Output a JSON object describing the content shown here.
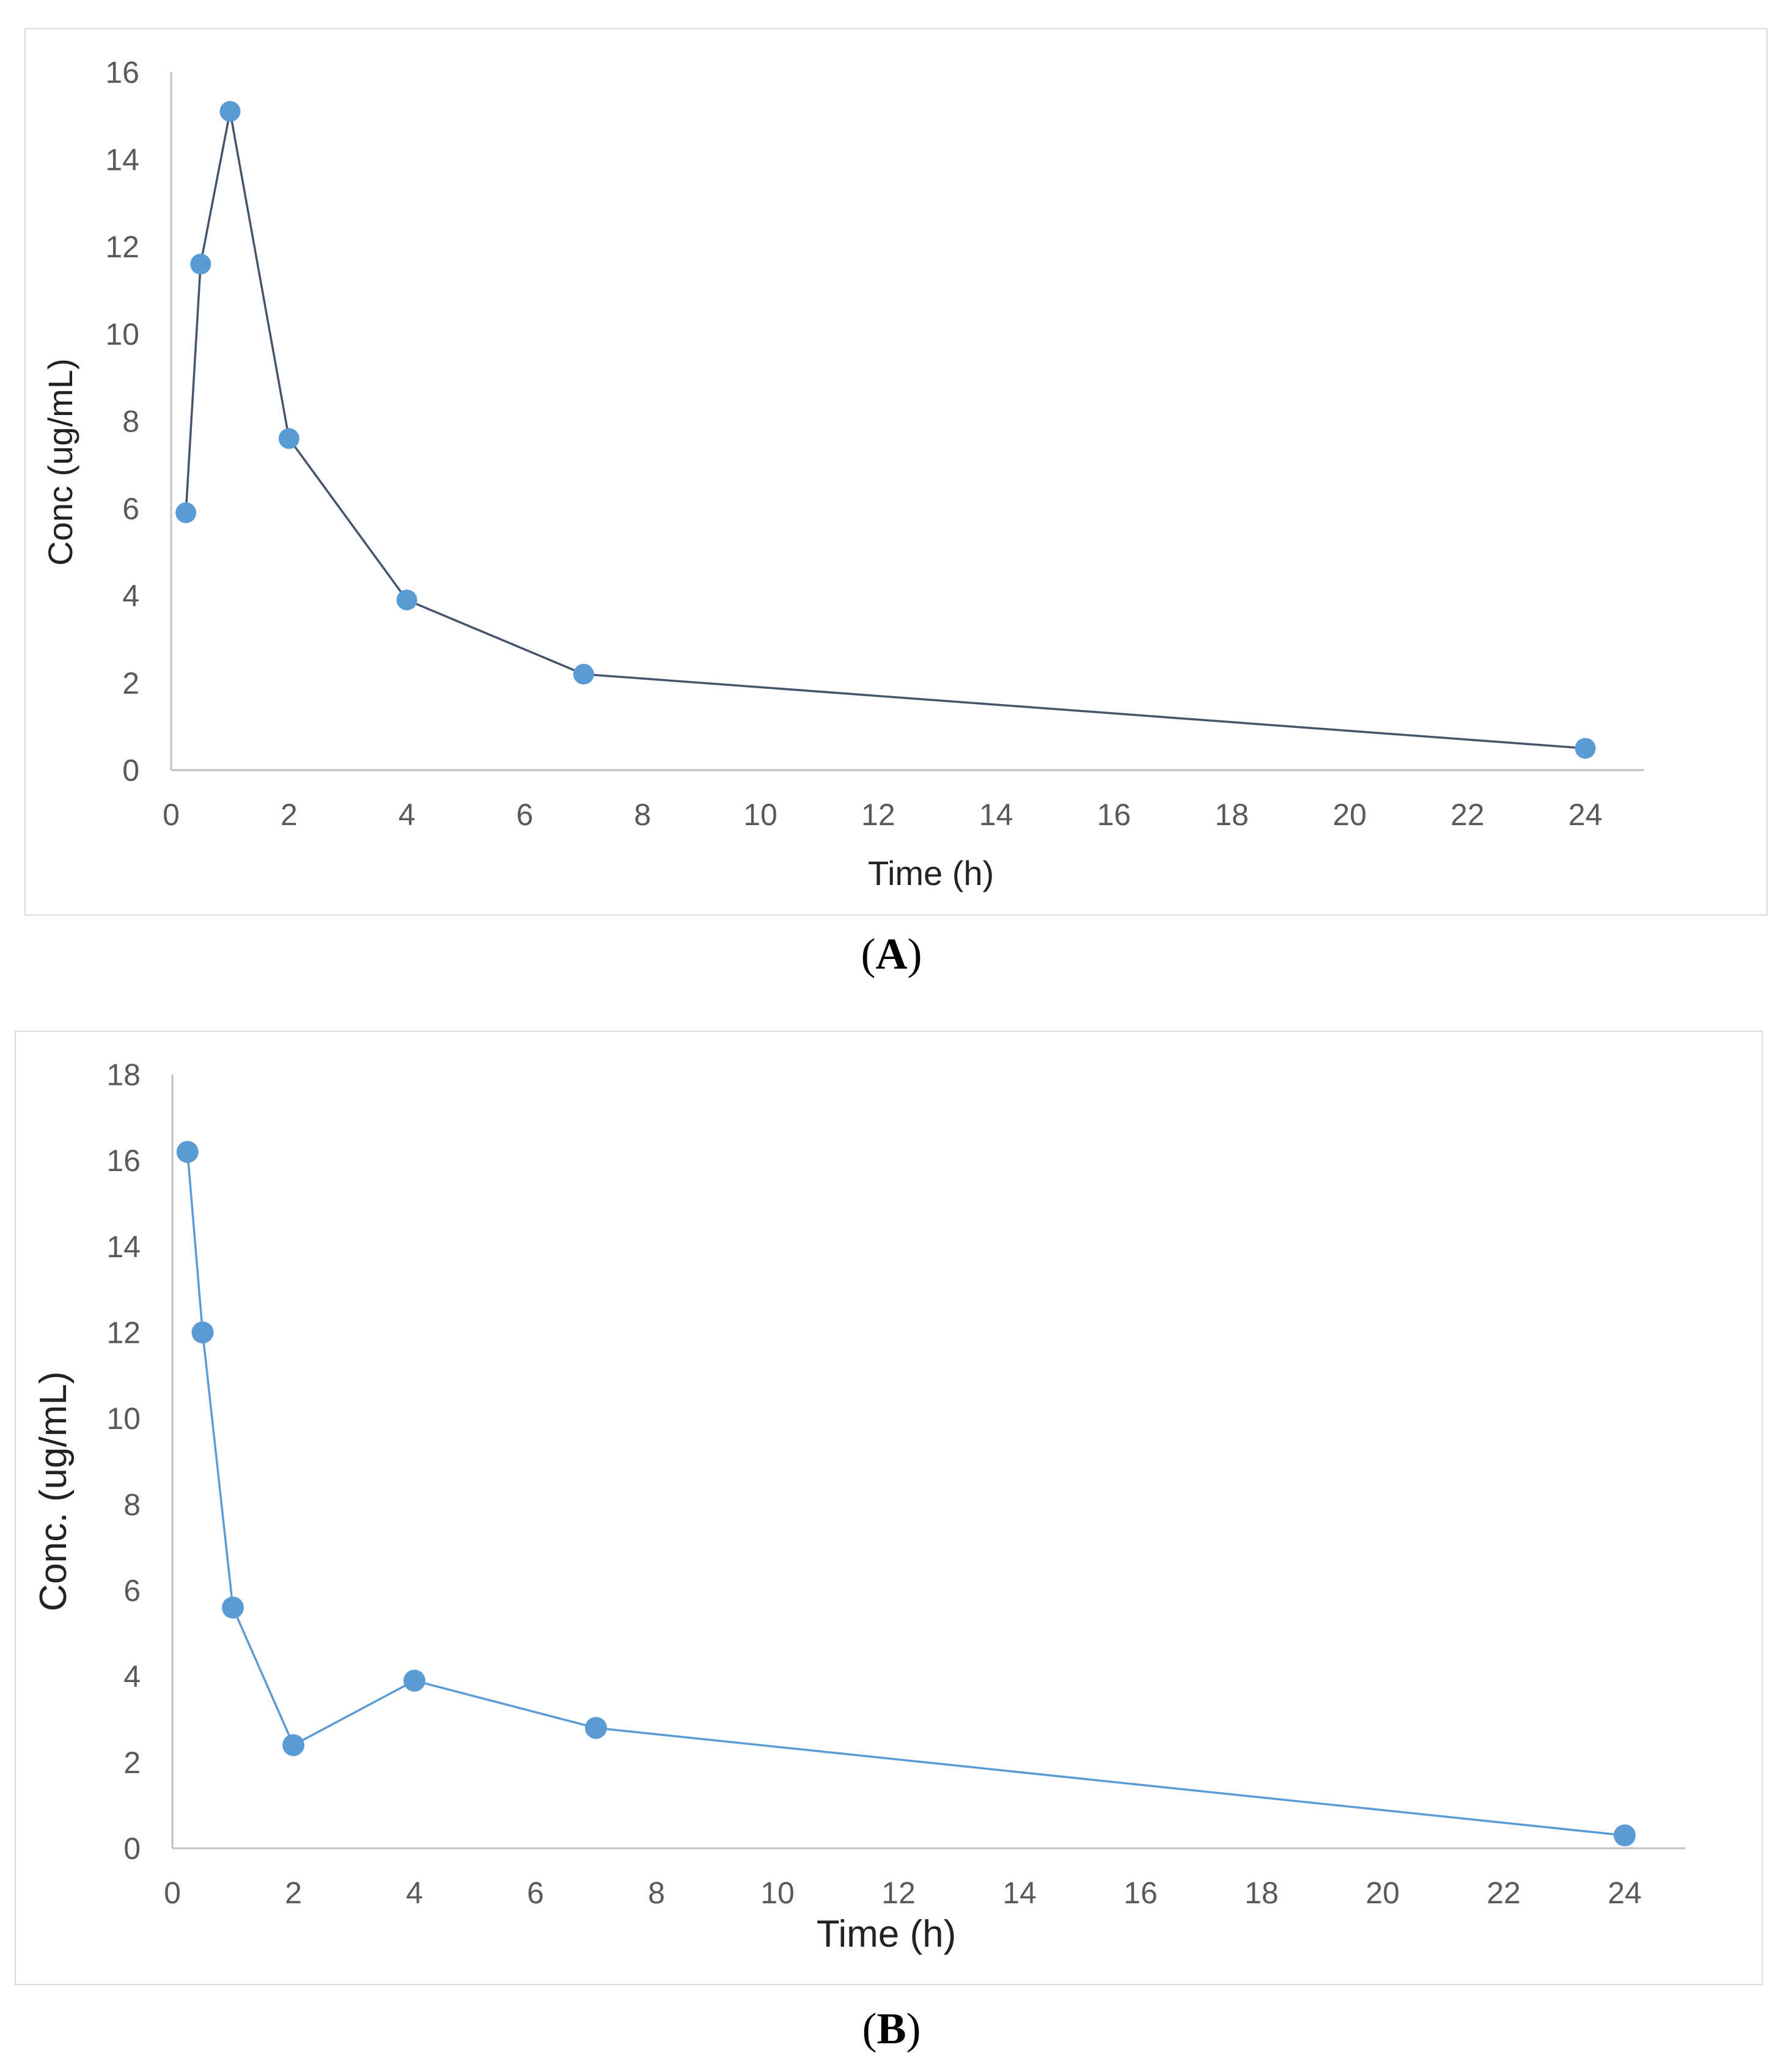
{
  "chart_data": [
    {
      "type": "line",
      "panel_label": "A",
      "title": "",
      "xlabel": "Time (h)",
      "ylabel": "Conc (ug/mL)",
      "xlim": [
        0,
        25
      ],
      "ylim": [
        0,
        16
      ],
      "x_ticks": [
        0,
        2,
        4,
        6,
        8,
        10,
        12,
        14,
        16,
        18,
        20,
        22,
        24
      ],
      "y_ticks": [
        0,
        2,
        4,
        6,
        8,
        10,
        12,
        14,
        16
      ],
      "series": [
        {
          "name": "Conc",
          "color": "#5b9bd5",
          "line_color": "#44546a",
          "x": [
            0.25,
            0.5,
            1,
            2,
            4,
            7,
            24
          ],
          "y": [
            5.9,
            11.6,
            15.1,
            7.6,
            3.9,
            2.2,
            0.5
          ]
        }
      ],
      "grid": false,
      "legend": "none"
    },
    {
      "type": "line",
      "panel_label": "B",
      "title": "",
      "xlabel": "Time (h)",
      "ylabel": "Conc. (ug/mL)",
      "xlim": [
        0,
        25
      ],
      "ylim": [
        0,
        18
      ],
      "x_ticks": [
        0,
        2,
        4,
        6,
        8,
        10,
        12,
        14,
        16,
        18,
        20,
        22,
        24
      ],
      "y_ticks": [
        0,
        2,
        4,
        6,
        8,
        10,
        12,
        14,
        16,
        18
      ],
      "series": [
        {
          "name": "Conc.",
          "color": "#5b9bd5",
          "line_color": "#5b9bd5",
          "x": [
            0.25,
            0.5,
            1,
            2,
            4,
            7,
            24
          ],
          "y": [
            16.2,
            12.0,
            5.6,
            2.4,
            3.9,
            2.8,
            0.3
          ]
        }
      ],
      "grid": false,
      "legend": "none"
    }
  ],
  "captions": {
    "a_open": "(",
    "a_label": "A",
    "a_close": ")",
    "b_open": "(",
    "b_label": "B",
    "b_close": ")"
  }
}
